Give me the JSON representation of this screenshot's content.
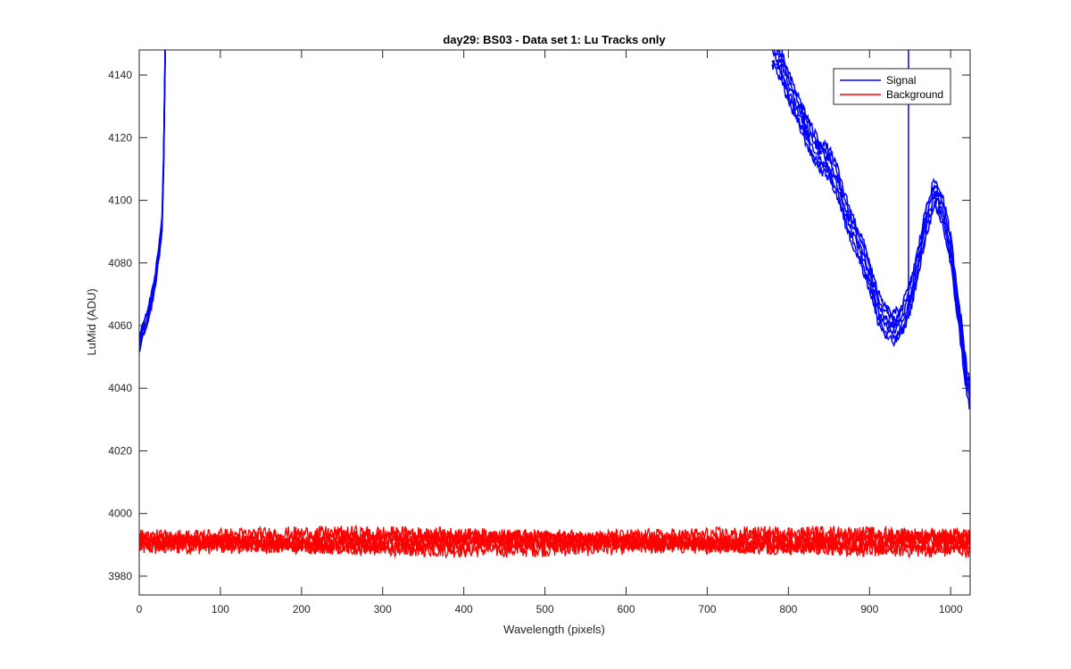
{
  "chart_data": {
    "type": "line",
    "title": "day29: BS03 - Data set 1: Lu Tracks only",
    "xlabel": "Wavelength (pixels)",
    "ylabel": "LuMid (ADU)",
    "xlim": [
      0,
      1024
    ],
    "ylim": [
      3974,
      4148
    ],
    "xticks": [
      0,
      100,
      200,
      300,
      400,
      500,
      600,
      700,
      800,
      900,
      1000
    ],
    "yticks": [
      3980,
      4000,
      4020,
      4040,
      4060,
      4080,
      4100,
      4120,
      4140
    ],
    "grid": false,
    "legend_position": "top-right",
    "series": [
      {
        "name": "Signal",
        "color": "#0000ff",
        "track_count": 6,
        "points": [
          [
            0,
            4054
          ],
          [
            5,
            4059
          ],
          [
            10,
            4062
          ],
          [
            15,
            4068
          ],
          [
            20,
            4075
          ],
          [
            25,
            4085
          ],
          [
            28,
            4092
          ],
          [
            30,
            4112
          ],
          [
            32,
            4148
          ],
          [
            780,
            4148
          ],
          [
            790,
            4144
          ],
          [
            800,
            4136
          ],
          [
            810,
            4130
          ],
          [
            820,
            4124
          ],
          [
            830,
            4118
          ],
          [
            840,
            4114
          ],
          [
            850,
            4112
          ],
          [
            860,
            4106
          ],
          [
            870,
            4097
          ],
          [
            880,
            4090
          ],
          [
            890,
            4084
          ],
          [
            900,
            4076
          ],
          [
            910,
            4066
          ],
          [
            920,
            4061
          ],
          [
            930,
            4059
          ],
          [
            940,
            4062
          ],
          [
            950,
            4069
          ],
          [
            960,
            4080
          ],
          [
            970,
            4094
          ],
          [
            980,
            4102
          ],
          [
            990,
            4097
          ],
          [
            1000,
            4084
          ],
          [
            1010,
            4064
          ],
          [
            1020,
            4042
          ],
          [
            1024,
            4038
          ]
        ],
        "spike": {
          "x": 948,
          "y_from": 4064,
          "y_to": 4148
        }
      },
      {
        "name": "Background",
        "color": "#ff0000",
        "track_count": 6,
        "mean": 3991,
        "range": [
          3986,
          3996
        ]
      }
    ]
  }
}
